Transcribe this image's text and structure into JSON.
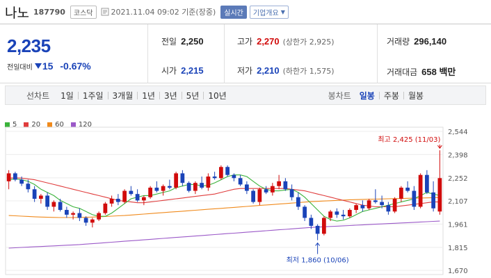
{
  "header": {
    "name": "나노",
    "code": "187790",
    "market": "코스닥",
    "datetime": "2021.11.04 09:02 기준(장중)",
    "realtime_label": "실시간",
    "company_label": "기업개요"
  },
  "summary": {
    "price": "2,235",
    "change_label": "전일대비",
    "change_amount": "15",
    "change_pct": "-0.67%",
    "prev_close_label": "전일",
    "prev_close": "2,250",
    "high_label": "고가",
    "high": "2,270",
    "upper_limit": "(상한가 2,925)",
    "volume_label": "거래량",
    "volume": "296,140",
    "open_label": "시가",
    "open": "2,215",
    "low_label": "저가",
    "low": "2,210",
    "lower_limit": "(하한가 1,575)",
    "amount_label": "거래대금",
    "amount": "658 백만"
  },
  "tabs": {
    "line_title": "선차트",
    "line": [
      "1일",
      "1주일",
      "3개월",
      "1년",
      "3년",
      "5년",
      "10년"
    ],
    "candle_title": "봉차트",
    "candle": [
      "일봉",
      "주봉",
      "월봉"
    ],
    "active_candle": "일봉"
  },
  "colors": {
    "up": "#d10b0b",
    "down": "#1a43b8",
    "ma5": "#3bb33b",
    "ma20": "#e03c3c",
    "ma60": "#f08a1c",
    "ma120": "#9b59c8"
  },
  "chart_data": {
    "type": "candlestick",
    "legend": [
      {
        "name": "5",
        "color": "#3bb33b"
      },
      {
        "name": "20",
        "color": "#e03c3c"
      },
      {
        "name": "60",
        "color": "#f08a1c"
      },
      {
        "name": "120",
        "color": "#9b59c8"
      }
    ],
    "y_ticks": [
      "2,544",
      "2,398",
      "2,252",
      "2,107",
      "1,961",
      "1,815",
      "1,670"
    ],
    "ylim": [
      1670,
      2544
    ],
    "high_annotation": "최고 2,425 (11/03)",
    "low_annotation": "최저 1,860 (10/06)",
    "candles": [
      [
        2230,
        2300,
        2180,
        2280
      ],
      [
        2280,
        2290,
        2230,
        2240
      ],
      [
        2240,
        2260,
        2200,
        2215
      ],
      [
        2215,
        2240,
        2160,
        2180
      ],
      [
        2180,
        2200,
        2100,
        2120
      ],
      [
        2120,
        2150,
        2090,
        2140
      ],
      [
        2140,
        2160,
        2050,
        2070
      ],
      [
        2070,
        2110,
        2040,
        2100
      ],
      [
        2100,
        2120,
        2040,
        2050
      ],
      [
        2050,
        2070,
        2000,
        2020
      ],
      [
        2020,
        2040,
        1990,
        2030
      ],
      [
        2030,
        2060,
        1980,
        2000
      ],
      [
        2000,
        2010,
        1950,
        1970
      ],
      [
        1970,
        2000,
        1940,
        1990
      ],
      [
        1990,
        2040,
        1980,
        2030
      ],
      [
        2030,
        2100,
        2020,
        2090
      ],
      [
        2090,
        2140,
        2070,
        2120
      ],
      [
        2120,
        2150,
        2080,
        2100
      ],
      [
        2100,
        2180,
        2090,
        2170
      ],
      [
        2170,
        2200,
        2140,
        2150
      ],
      [
        2150,
        2180,
        2100,
        2110
      ],
      [
        2110,
        2140,
        2080,
        2130
      ],
      [
        2130,
        2200,
        2120,
        2190
      ],
      [
        2190,
        2230,
        2160,
        2170
      ],
      [
        2170,
        2210,
        2140,
        2200
      ],
      [
        2200,
        2240,
        2180,
        2190
      ],
      [
        2190,
        2290,
        2180,
        2280
      ],
      [
        2280,
        2300,
        2200,
        2220
      ],
      [
        2220,
        2230,
        2160,
        2170
      ],
      [
        2170,
        2230,
        2150,
        2220
      ],
      [
        2220,
        2260,
        2180,
        2190
      ],
      [
        2190,
        2280,
        2170,
        2260
      ],
      [
        2260,
        2290,
        2240,
        2250
      ],
      [
        2250,
        2330,
        2240,
        2320
      ],
      [
        2320,
        2330,
        2260,
        2270
      ],
      [
        2270,
        2280,
        2230,
        2250
      ],
      [
        2250,
        2270,
        2200,
        2210
      ],
      [
        2210,
        2230,
        2150,
        2170
      ],
      [
        2170,
        2180,
        2090,
        2100
      ],
      [
        2100,
        2190,
        2080,
        2180
      ],
      [
        2180,
        2200,
        2150,
        2160
      ],
      [
        2160,
        2220,
        2140,
        2200
      ],
      [
        2200,
        2270,
        2180,
        2230
      ],
      [
        2230,
        2250,
        2170,
        2180
      ],
      [
        2180,
        2210,
        2110,
        2130
      ],
      [
        2130,
        2160,
        2050,
        2070
      ],
      [
        2070,
        2080,
        1980,
        2000
      ],
      [
        2000,
        2020,
        1930,
        1950
      ],
      [
        1950,
        1960,
        1860,
        1900
      ],
      [
        1900,
        2010,
        1890,
        2000
      ],
      [
        2000,
        2050,
        1980,
        2040
      ],
      [
        2040,
        2060,
        2000,
        2020
      ],
      [
        2020,
        2050,
        1990,
        2010
      ],
      [
        2010,
        2060,
        2000,
        2050
      ],
      [
        2050,
        2090,
        2030,
        2080
      ],
      [
        2080,
        2110,
        2040,
        2060
      ],
      [
        2060,
        2120,
        2050,
        2110
      ],
      [
        2110,
        2180,
        2090,
        2100
      ],
      [
        2100,
        2140,
        2060,
        2080
      ],
      [
        2080,
        2100,
        2020,
        2040
      ],
      [
        2040,
        2130,
        2030,
        2120
      ],
      [
        2120,
        2200,
        2100,
        2190
      ],
      [
        2190,
        2230,
        2160,
        2170
      ],
      [
        2170,
        2200,
        2050,
        2070
      ],
      [
        2070,
        2280,
        2060,
        2270
      ],
      [
        2270,
        2300,
        2150,
        2160
      ],
      [
        2160,
        2230,
        2040,
        2060
      ],
      [
        2040,
        2425,
        2020,
        2250
      ]
    ],
    "ma5": [
      2240,
      2245,
      2240,
      2230,
      2210,
      2180,
      2160,
      2140,
      2110,
      2090,
      2070,
      2060,
      2040,
      2020,
      2010,
      2010,
      2030,
      2060,
      2090,
      2120,
      2130,
      2140,
      2140,
      2150,
      2160,
      2170,
      2190,
      2200,
      2210,
      2210,
      2200,
      2205,
      2220,
      2240,
      2260,
      2270,
      2270,
      2260,
      2230,
      2200,
      2180,
      2170,
      2170,
      2175,
      2180,
      2160,
      2130,
      2090,
      2050,
      2010,
      1990,
      1980,
      1985,
      2000,
      2020,
      2040,
      2050,
      2060,
      2070,
      2080,
      2090,
      2100,
      2110,
      2120,
      2140,
      2160,
      2150,
      2140
    ],
    "ma20": [
      2250,
      2252,
      2250,
      2245,
      2240,
      2230,
      2220,
      2210,
      2200,
      2190,
      2180,
      2170,
      2160,
      2150,
      2140,
      2130,
      2120,
      2110,
      2105,
      2100,
      2095,
      2095,
      2100,
      2105,
      2110,
      2115,
      2120,
      2125,
      2130,
      2135,
      2140,
      2145,
      2150,
      2160,
      2170,
      2180,
      2185,
      2185,
      2185,
      2185,
      2185,
      2185,
      2185,
      2185,
      2180,
      2175,
      2170,
      2160,
      2150,
      2140,
      2130,
      2120,
      2110,
      2100,
      2090,
      2080,
      2075,
      2070,
      2070,
      2070,
      2070,
      2075,
      2080,
      2085,
      2090,
      2095,
      2100,
      2100
    ],
    "ma60": [
      2015,
      2013,
      2011,
      2009,
      2007,
      2005,
      2004,
      2003,
      2002,
      2002,
      2002,
      2003,
      2004,
      2005,
      2007,
      2009,
      2011,
      2013,
      2015,
      2018,
      2021,
      2024,
      2027,
      2030,
      2033,
      2036,
      2039,
      2042,
      2045,
      2048,
      2051,
      2054,
      2057,
      2060,
      2063,
      2066,
      2069,
      2072,
      2075,
      2078,
      2081,
      2084,
      2087,
      2090,
      2093,
      2096,
      2099,
      2102,
      2104,
      2106,
      2108,
      2110,
      2112,
      2114,
      2115,
      2116,
      2117,
      2118,
      2119,
      2120,
      2121,
      2122,
      2123,
      2124,
      2125,
      2126,
      2127,
      2128
    ],
    "ma120": [
      1810,
      1812,
      1814,
      1816,
      1818,
      1820,
      1822,
      1824,
      1826,
      1828,
      1830,
      1832,
      1835,
      1838,
      1841,
      1844,
      1847,
      1850,
      1853,
      1856,
      1859,
      1862,
      1865,
      1868,
      1871,
      1874,
      1877,
      1880,
      1883,
      1886,
      1889,
      1892,
      1895,
      1898,
      1901,
      1904,
      1907,
      1910,
      1913,
      1916,
      1919,
      1922,
      1925,
      1928,
      1931,
      1934,
      1937,
      1940,
      1942,
      1944,
      1946,
      1948,
      1950,
      1952,
      1954,
      1956,
      1958,
      1960,
      1962,
      1964,
      1966,
      1968,
      1970,
      1972,
      1974,
      1976,
      1978,
      1980
    ]
  }
}
